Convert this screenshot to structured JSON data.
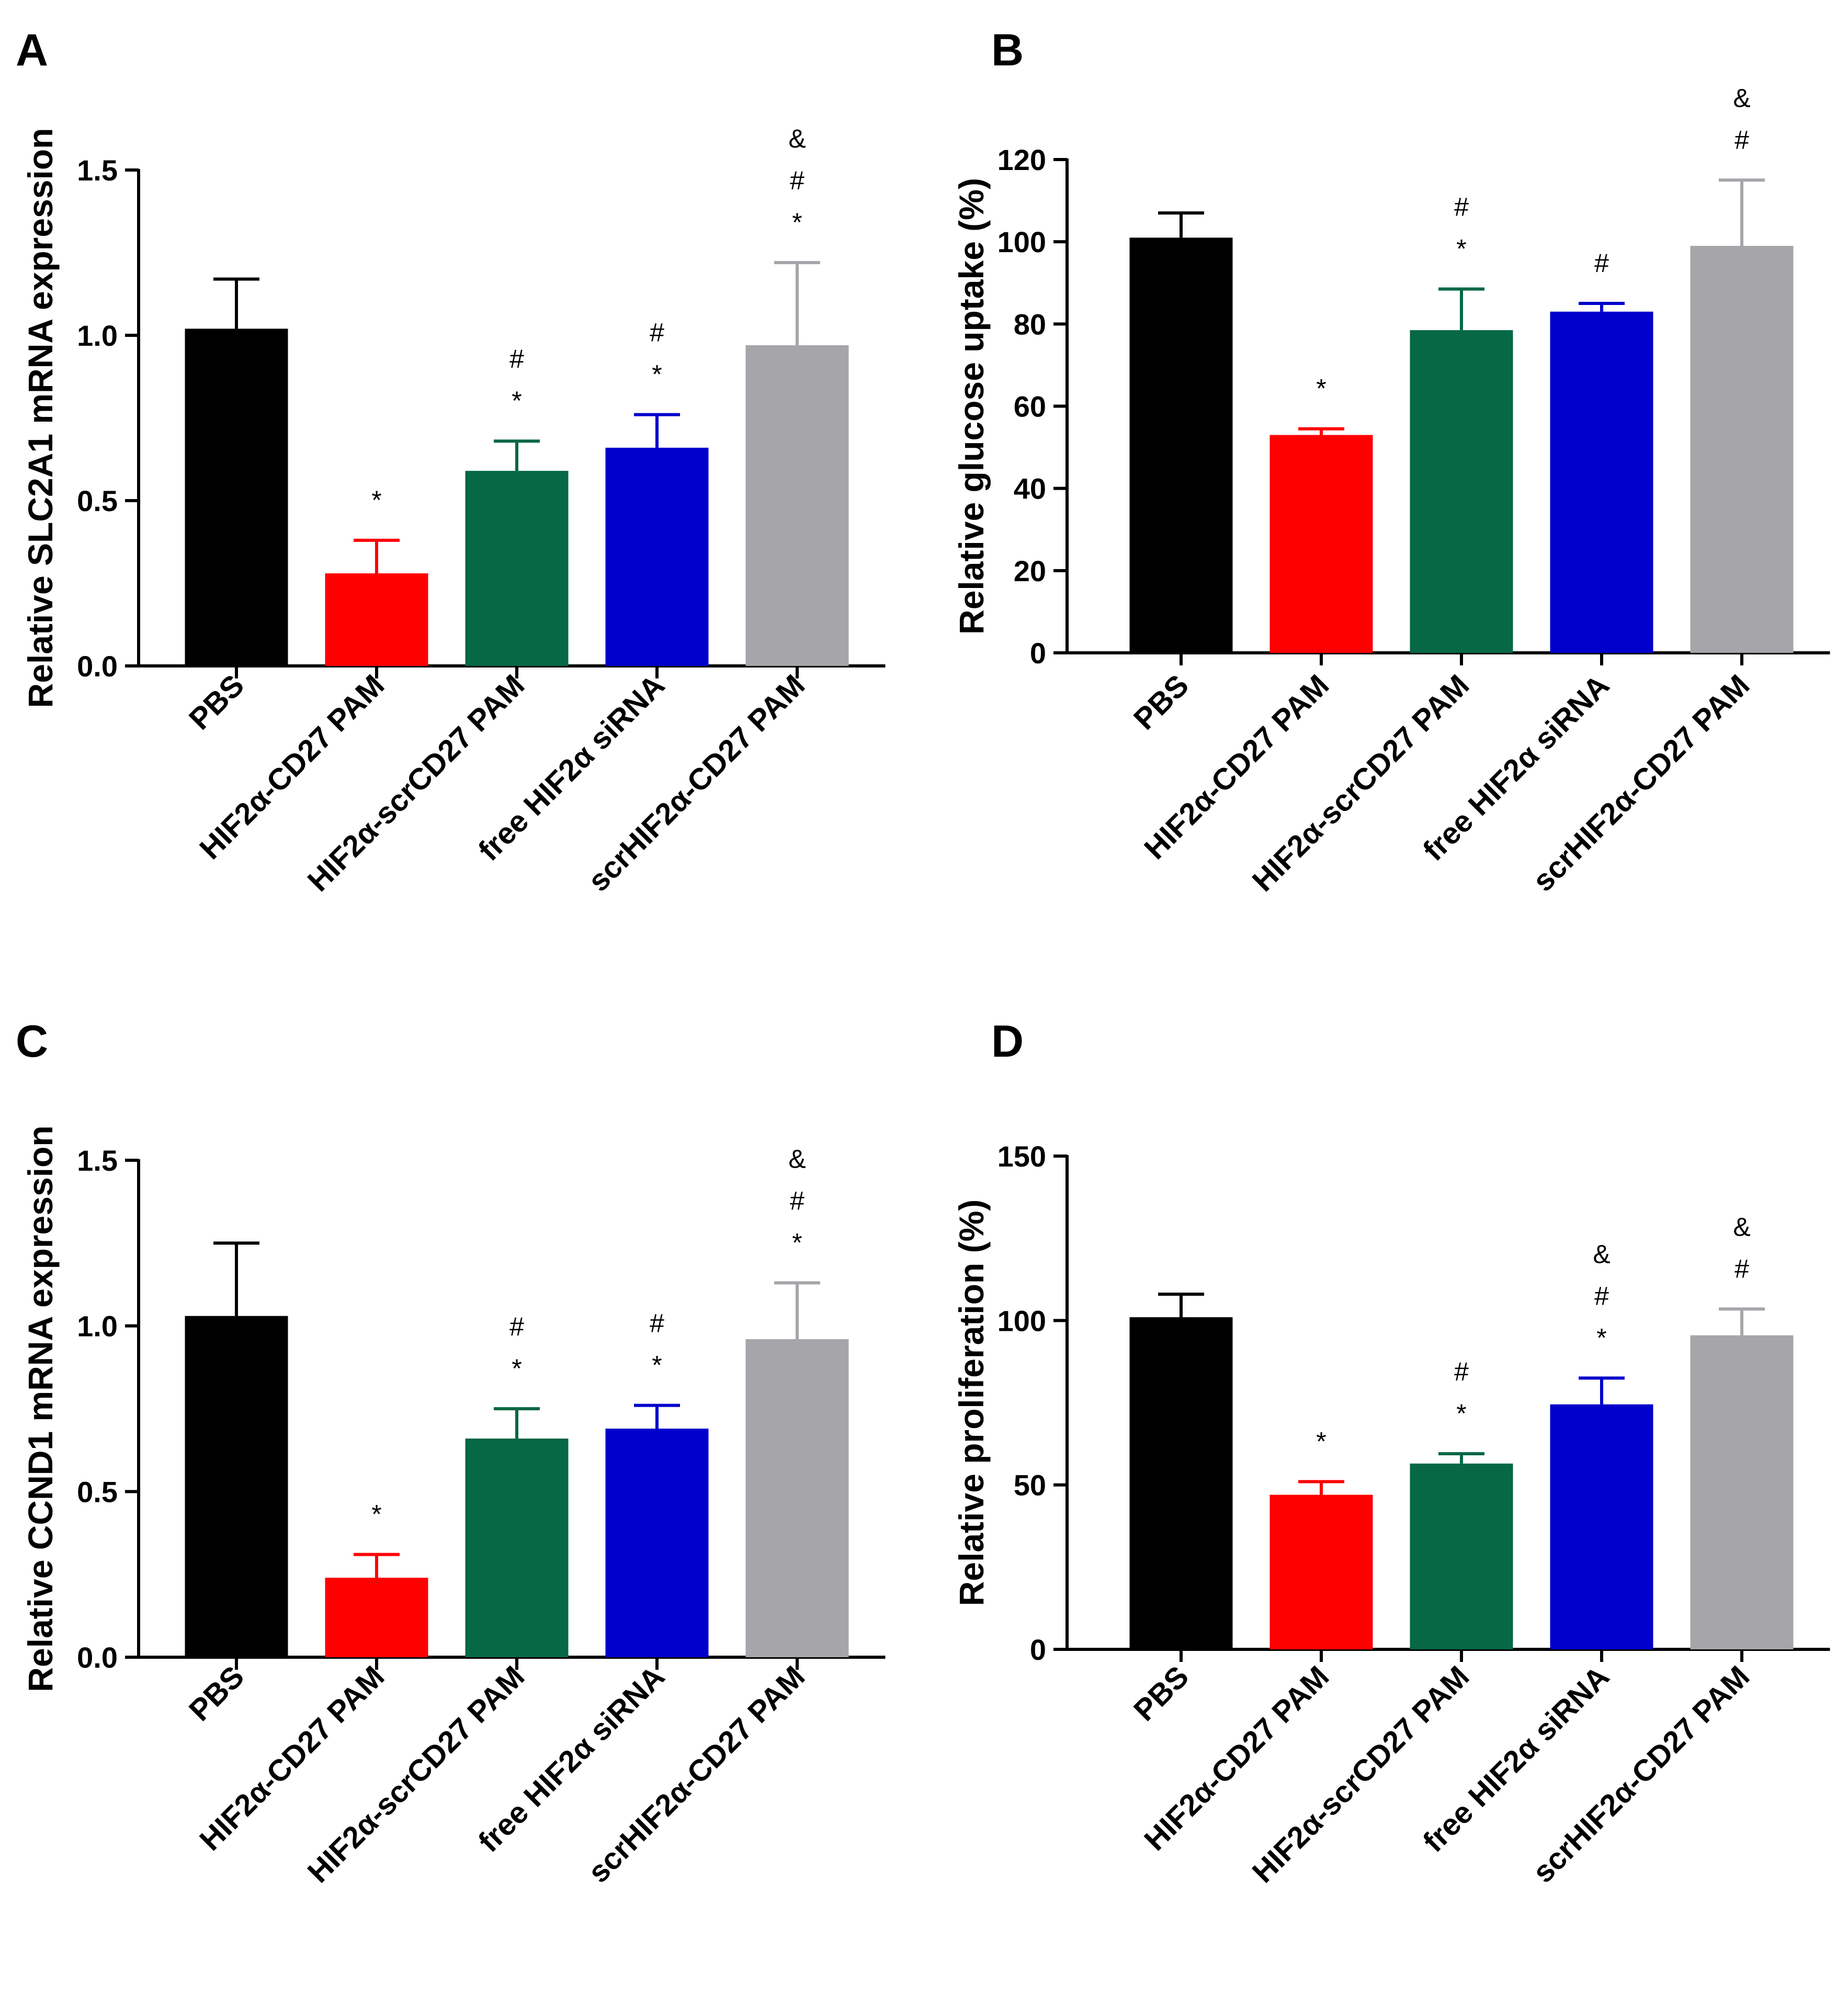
{
  "colors": {
    "PBS": "#000000",
    "HIF2α-CD27 PAM": "#ff0000",
    "HIF2α-scrCD27 PAM": "#066844",
    "free HIF2α siRNA": "#0000cc",
    "scrHIF2α-CD27 PAM": "#a6a6aa"
  },
  "chart_data": [
    {
      "type": "bar",
      "panel": "A",
      "ylabel": "Relative SLC2A1 mRNA expression",
      "categories": [
        "PBS",
        "HIF2α-CD27 PAM",
        "HIF2α-scrCD27 PAM",
        "free HIF2α siRNA",
        "scrHIF2α-CD27 PAM"
      ],
      "values": [
        1.02,
        0.28,
        0.59,
        0.66,
        0.97
      ],
      "errors": [
        0.15,
        0.1,
        0.09,
        0.1,
        0.25
      ],
      "annotations": [
        [],
        [
          "*"
        ],
        [
          "*",
          "#"
        ],
        [
          "*",
          "#"
        ],
        [
          "*",
          "#",
          "&"
        ]
      ],
      "ylim": [
        0,
        1.5
      ],
      "yticks": [
        "0.0",
        "0.5",
        "1.0",
        "1.5"
      ]
    },
    {
      "type": "bar",
      "panel": "B",
      "ylabel": "Relative glucose uptake (%)",
      "categories": [
        "PBS",
        "HIF2α-CD27 PAM",
        "HIF2α-scrCD27 PAM",
        "free HIF2α siRNA",
        "scrHIF2α-CD27 PAM"
      ],
      "values": [
        101,
        53,
        78.5,
        83,
        99
      ],
      "errors": [
        6,
        1.5,
        10,
        2,
        16
      ],
      "annotations": [
        [],
        [
          "*"
        ],
        [
          "*",
          "#"
        ],
        [
          "#"
        ],
        [
          "#",
          "&"
        ]
      ],
      "ylim": [
        0,
        120
      ],
      "yticks": [
        "0",
        "20",
        "40",
        "60",
        "80",
        "100",
        "120"
      ]
    },
    {
      "type": "bar",
      "panel": "C",
      "ylabel": "Relative CCND1 mRNA expression",
      "categories": [
        "PBS",
        "HIF2α-CD27 PAM",
        "HIF2α-scrCD27 PAM",
        "free HIF2α siRNA",
        "scrHIF2α-CD27 PAM"
      ],
      "values": [
        1.03,
        0.24,
        0.66,
        0.69,
        0.96
      ],
      "errors": [
        0.22,
        0.07,
        0.09,
        0.07,
        0.17
      ],
      "annotations": [
        [],
        [
          "*"
        ],
        [
          "*",
          "#"
        ],
        [
          "*",
          "#"
        ],
        [
          "*",
          "#",
          "&"
        ]
      ],
      "ylim": [
        0,
        1.5
      ],
      "yticks": [
        "0.0",
        "0.5",
        "1.0",
        "1.5"
      ]
    },
    {
      "type": "bar",
      "panel": "D",
      "ylabel": "Relative proliferation (%)",
      "categories": [
        "PBS",
        "HIF2α-CD27 PAM",
        "HIF2α-scrCD27 PAM",
        "free HIF2α siRNA",
        "scrHIF2α-CD27 PAM"
      ],
      "values": [
        101,
        47,
        56.5,
        74.5,
        95.5
      ],
      "errors": [
        7,
        4,
        3,
        8,
        8
      ],
      "annotations": [
        [],
        [
          "*"
        ],
        [
          "*",
          "#"
        ],
        [
          "*",
          "#",
          "&"
        ],
        [
          "#",
          "&"
        ]
      ],
      "ylim": [
        0,
        150
      ],
      "yticks": [
        "0",
        "50",
        "100",
        "150"
      ]
    }
  ]
}
